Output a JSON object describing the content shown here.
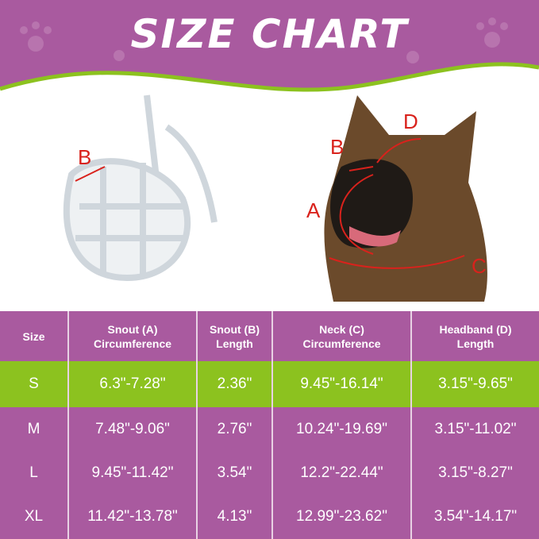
{
  "title": "SIZE CHART",
  "labels": {
    "a": "A",
    "b": "B",
    "c": "C",
    "d": "D",
    "muzzle_b": "B"
  },
  "colors": {
    "purple": "#a95a9f",
    "green": "#8cc21f",
    "arrow": "#d9221c"
  },
  "table": {
    "headers": [
      {
        "l1": "Size",
        "l2": ""
      },
      {
        "l1": "Snout (A)",
        "l2": "Circumference"
      },
      {
        "l1": "Snout (B)",
        "l2": "Length"
      },
      {
        "l1": "Neck (C)",
        "l2": "Circumference"
      },
      {
        "l1": "Headband (D)",
        "l2": "Length"
      }
    ],
    "rows": [
      [
        "S",
        "6.3\"-7.28\"",
        "2.36\"",
        "9.45\"-16.14\"",
        "3.15\"-9.65\""
      ],
      [
        "M",
        "7.48\"-9.06\"",
        "2.76\"",
        "10.24\"-19.69\"",
        "3.15\"-11.02\""
      ],
      [
        "L",
        "9.45\"-11.42\"",
        "3.54\"",
        "12.2\"-22.44\"",
        "3.15\"-8.27\""
      ],
      [
        "XL",
        "11.42\"-13.78\"",
        "4.13\"",
        "12.99\"-23.62\"",
        "3.54\"-14.17\""
      ]
    ]
  }
}
